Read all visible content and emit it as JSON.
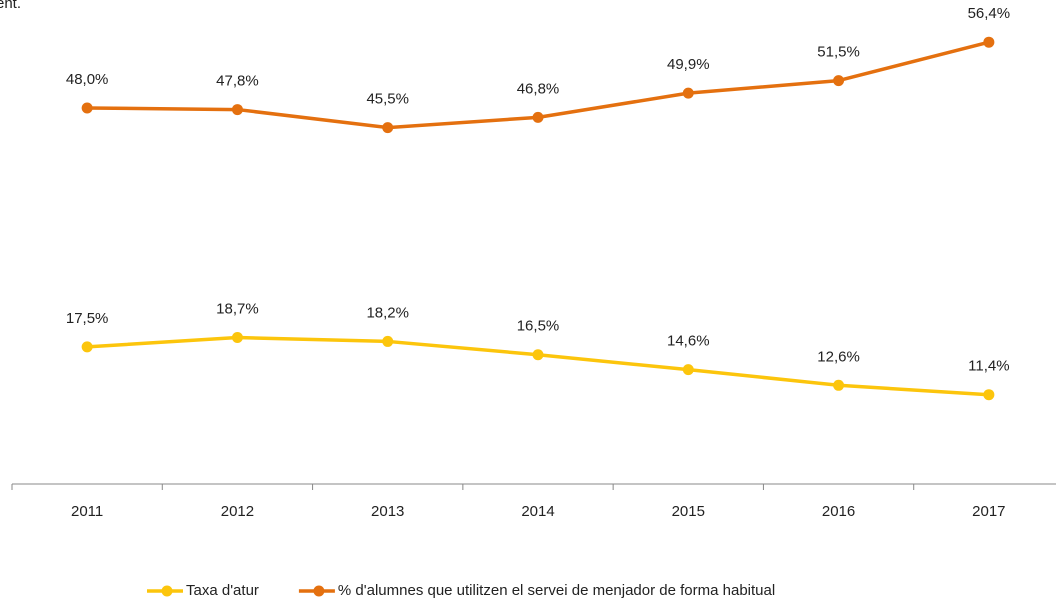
{
  "chart_data": {
    "type": "line",
    "title": "ent.",
    "categories": [
      "2011",
      "2012",
      "2013",
      "2014",
      "2015",
      "2016",
      "2017"
    ],
    "series": [
      {
        "name": "Taxa d'atur",
        "color": "#fcc50c",
        "values": [
          17.5,
          18.7,
          18.2,
          16.5,
          14.6,
          12.6,
          11.4
        ],
        "value_labels": [
          "17,5%",
          "18,7%",
          "18,2%",
          "16,5%",
          "14,6%",
          "12,6%",
          "11,4%"
        ]
      },
      {
        "name": "% d'alumnes que utilitzen el servei de menjador de forma habitual",
        "color": "#e4700f",
        "values": [
          48.0,
          47.8,
          45.5,
          46.8,
          49.9,
          51.5,
          56.4
        ],
        "value_labels": [
          "48,0%",
          "47,8%",
          "45,5%",
          "46,8%",
          "49,9%",
          "51,5%",
          "56,4%"
        ]
      }
    ],
    "ylim": [
      0,
      60
    ],
    "legend": "bottom"
  }
}
